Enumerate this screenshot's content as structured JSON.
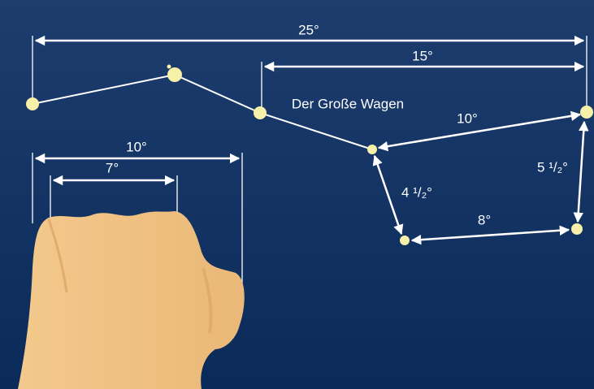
{
  "diagram": {
    "labels": {
      "span_total": "25°",
      "span_partial": "15°",
      "title": "Der Große Wagen",
      "span_right_top": "10°",
      "span_left_inner": "4 ¹/₂°",
      "span_right_side": "5 ¹/₂°",
      "span_bottom": "8°",
      "fist_outer": "10°",
      "fist_inner": "7°"
    }
  }
}
